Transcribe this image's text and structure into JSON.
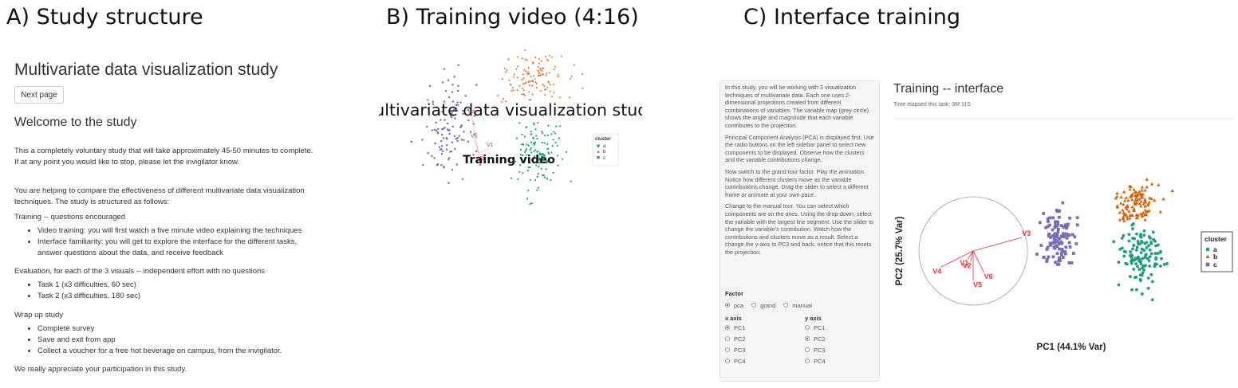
{
  "panels": {
    "a": "A) Study structure",
    "b": "B) Training video (4:16)",
    "c": "C) Interface training"
  },
  "study": {
    "title": "Multivariate data visualization study",
    "next_button": "Next page",
    "welcome": "Welcome to the study",
    "intro": "This a completely voluntary study that will take approximately 45-50 minutes to complete. If at any point you would like to stop, please let the invigilator know.",
    "purpose": "You are helping to compare the effectiveness of different multivariate data visualization techniques. The study is structured as follows:",
    "training_heading": "Training -- questions encouraged",
    "training_items": [
      "Video training: you will first watch a five minute video explaining the techniques",
      "Interface familiarity: you will get to explore the interface for the different tasks, answer questions about the data, and receive feedback"
    ],
    "evaluation_heading": "Evaluation, for each of the 3 visuals -- independent effort with no questions",
    "evaluation_items": [
      "Task 1 (x3 difficulties, 60 sec)",
      "Task 2 (x3 difficulties, 180 sec)"
    ],
    "wrapup_heading": "Wrap up study",
    "wrapup_items": [
      "Complete survey",
      "Save and exit from app",
      "Collect a voucher for a free hot beverage on campus, from the invigilator."
    ],
    "thanks": "We really appreciate your participation in this study."
  },
  "video": {
    "overlay_title": "Multivariate data visualization study",
    "overlay_subtitle": "Training video",
    "var_labels": [
      "V4",
      "V5",
      "V1",
      "V2"
    ],
    "legend_title": "cluster",
    "legend_items": [
      "a",
      "b",
      "c"
    ]
  },
  "interface": {
    "sidebar_paragraphs": [
      "In this study, you will be working with 3 visualization techniques of multivariate data. Each one uses 2-dimensional projections created from different combinations of variables. The variable map (grey circle) shows the angle and magnitude that each variable contributes to the projection.",
      "Principal Component Analysis (PCA) is displayed first. Use the radio buttons on the left sidebar panel to select new components to be displayed. Observe how the clusters and the variable contributions change.",
      "Now switch to the grand tour factor. Play the animation. Notice how different clusters move as the variable contributions change. Drag the slider to select a different frame or animate at your own pace.",
      "Change to the manual tour. You can select which components are on the axes. Using the drop-down, select the variable with the largest line segment. Use the slider to change the variable's contribution. Watch how the contributions and clusters move as a result. Select a change the y-axis to PC3 and back, notice that this resets the projection."
    ],
    "factor_label": "Factor",
    "factor_options": [
      "pca",
      "grand",
      "manual"
    ],
    "factor_selected": "pca",
    "x_axis_label": "x axis",
    "y_axis_label": "y axis",
    "axis_options": [
      "PC1",
      "PC2",
      "PC3",
      "PC4"
    ],
    "x_selected": "PC1",
    "y_selected": "PC2",
    "title": "Training -- interface",
    "elapsed": "Time elapsed this task: 3M 11S"
  },
  "colors": {
    "a": "#1b9e77",
    "b": "#d95f02",
    "c": "#7570b3",
    "vars": "#e8323c"
  },
  "chart_data": [
    {
      "type": "scatter",
      "xlabel": "",
      "ylabel": "",
      "series": [
        {
          "name": "a",
          "cx": 0.55,
          "cy": 0.1,
          "sx": 0.16,
          "sy": 0.28,
          "n": 130
        },
        {
          "name": "b",
          "cx": 0.45,
          "cy": 1.35,
          "sx": 0.25,
          "sy": 0.22,
          "n": 120
        },
        {
          "name": "c",
          "cx": -0.75,
          "cy": 0.55,
          "sx": 0.2,
          "sy": 0.4,
          "n": 110
        }
      ],
      "xlim": [
        -1.6,
        1.4
      ],
      "ylim": [
        -0.9,
        1.75
      ],
      "axes": [
        {
          "name": "V4",
          "x": -0.18,
          "y": 0.95
        },
        {
          "name": "V5",
          "x": -0.12,
          "y": 0.35
        },
        {
          "name": "V1",
          "x": 0.28,
          "y": 0.12
        },
        {
          "name": "V2",
          "x": 0.05,
          "y": -0.22
        }
      ],
      "legend_title": "cluster",
      "legend_position": "right"
    },
    {
      "type": "scatter",
      "title": "Training -- interface",
      "xlabel": "PC1 (44.1% Var)",
      "ylabel": "PC2 (25.7% Var)",
      "xlim": [
        -3.2,
        2.2
      ],
      "ylim": [
        -1.5,
        1.6
      ],
      "series": [
        {
          "name": "a",
          "cx": 1.15,
          "cy": -0.05,
          "sx": 0.22,
          "sy": 0.3,
          "n": 120
        },
        {
          "name": "b",
          "cx": 1.1,
          "cy": 0.95,
          "sx": 0.2,
          "sy": 0.2,
          "n": 110
        },
        {
          "name": "c",
          "cx": -0.45,
          "cy": 0.25,
          "sx": 0.17,
          "sy": 0.3,
          "n": 110
        }
      ],
      "axes": [
        {
          "name": "V3",
          "x": 0.9,
          "y": 0.25
        },
        {
          "name": "V4",
          "x": -0.6,
          "y": -0.3
        },
        {
          "name": "V6",
          "x": 0.2,
          "y": -0.4
        },
        {
          "name": "V5",
          "x": 0.0,
          "y": -0.55
        },
        {
          "name": "V2",
          "x": -0.05,
          "y": -0.2
        },
        {
          "name": "V1",
          "x": -0.1,
          "y": -0.15
        }
      ],
      "legend_title": "cluster",
      "legend_position": "right"
    }
  ]
}
